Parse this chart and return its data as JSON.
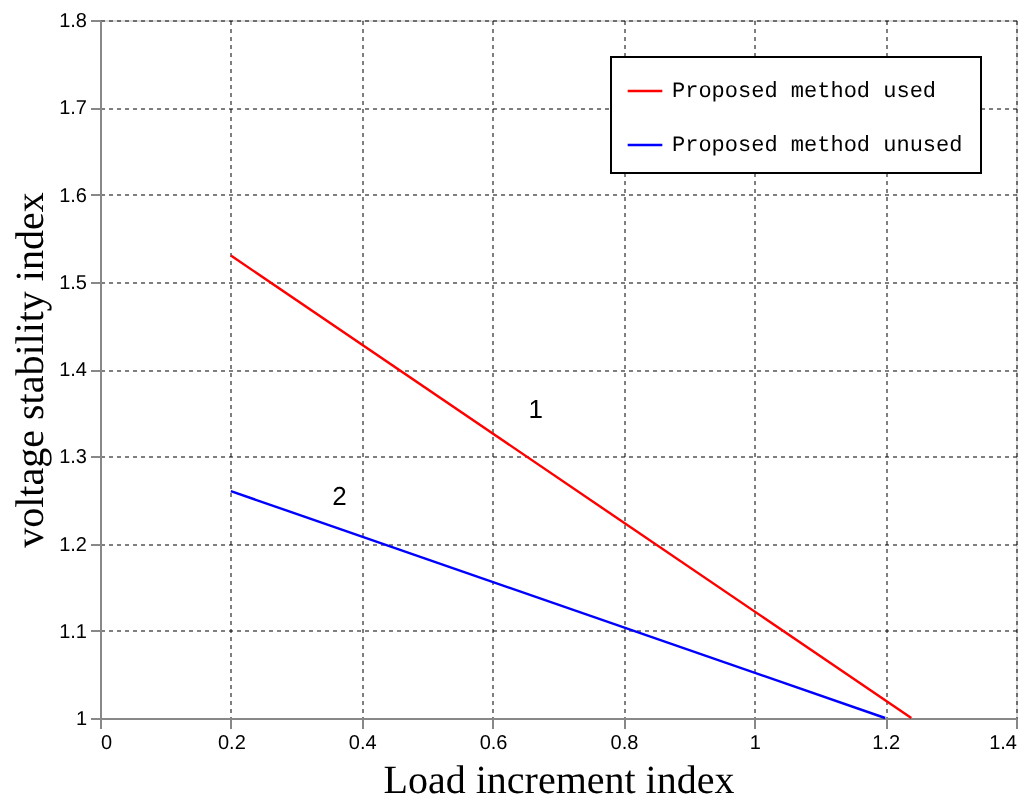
{
  "chart_data": {
    "type": "line",
    "xlabel": "Load increment index",
    "ylabel": "voltage stability index",
    "xlim": [
      0,
      1.4
    ],
    "xticks": [
      0,
      0.2,
      0.4,
      0.6,
      0.8,
      1,
      1.2,
      1.4
    ],
    "ylim": [
      1,
      1.8
    ],
    "yticks": [
      1,
      1.1,
      1.2,
      1.3,
      1.4,
      1.5,
      1.6,
      1.7,
      1.8
    ],
    "grid": true,
    "legend": "top right",
    "line_style": "solid",
    "marker": "none",
    "series": [
      {
        "name": "Proposed method used",
        "color": "#ff0000",
        "x": [
          0.2,
          1.24
        ],
        "values": [
          1.53,
          1.0
        ]
      },
      {
        "name": "Proposed method unused",
        "color": "#0000ff",
        "x": [
          0.2,
          1.2
        ],
        "values": [
          1.26,
          1.0
        ]
      }
    ],
    "annotations": [
      {
        "text": "1",
        "x": 0.6,
        "y": 1.33
      },
      {
        "text": "2",
        "x": 0.3,
        "y": 1.23
      }
    ]
  }
}
